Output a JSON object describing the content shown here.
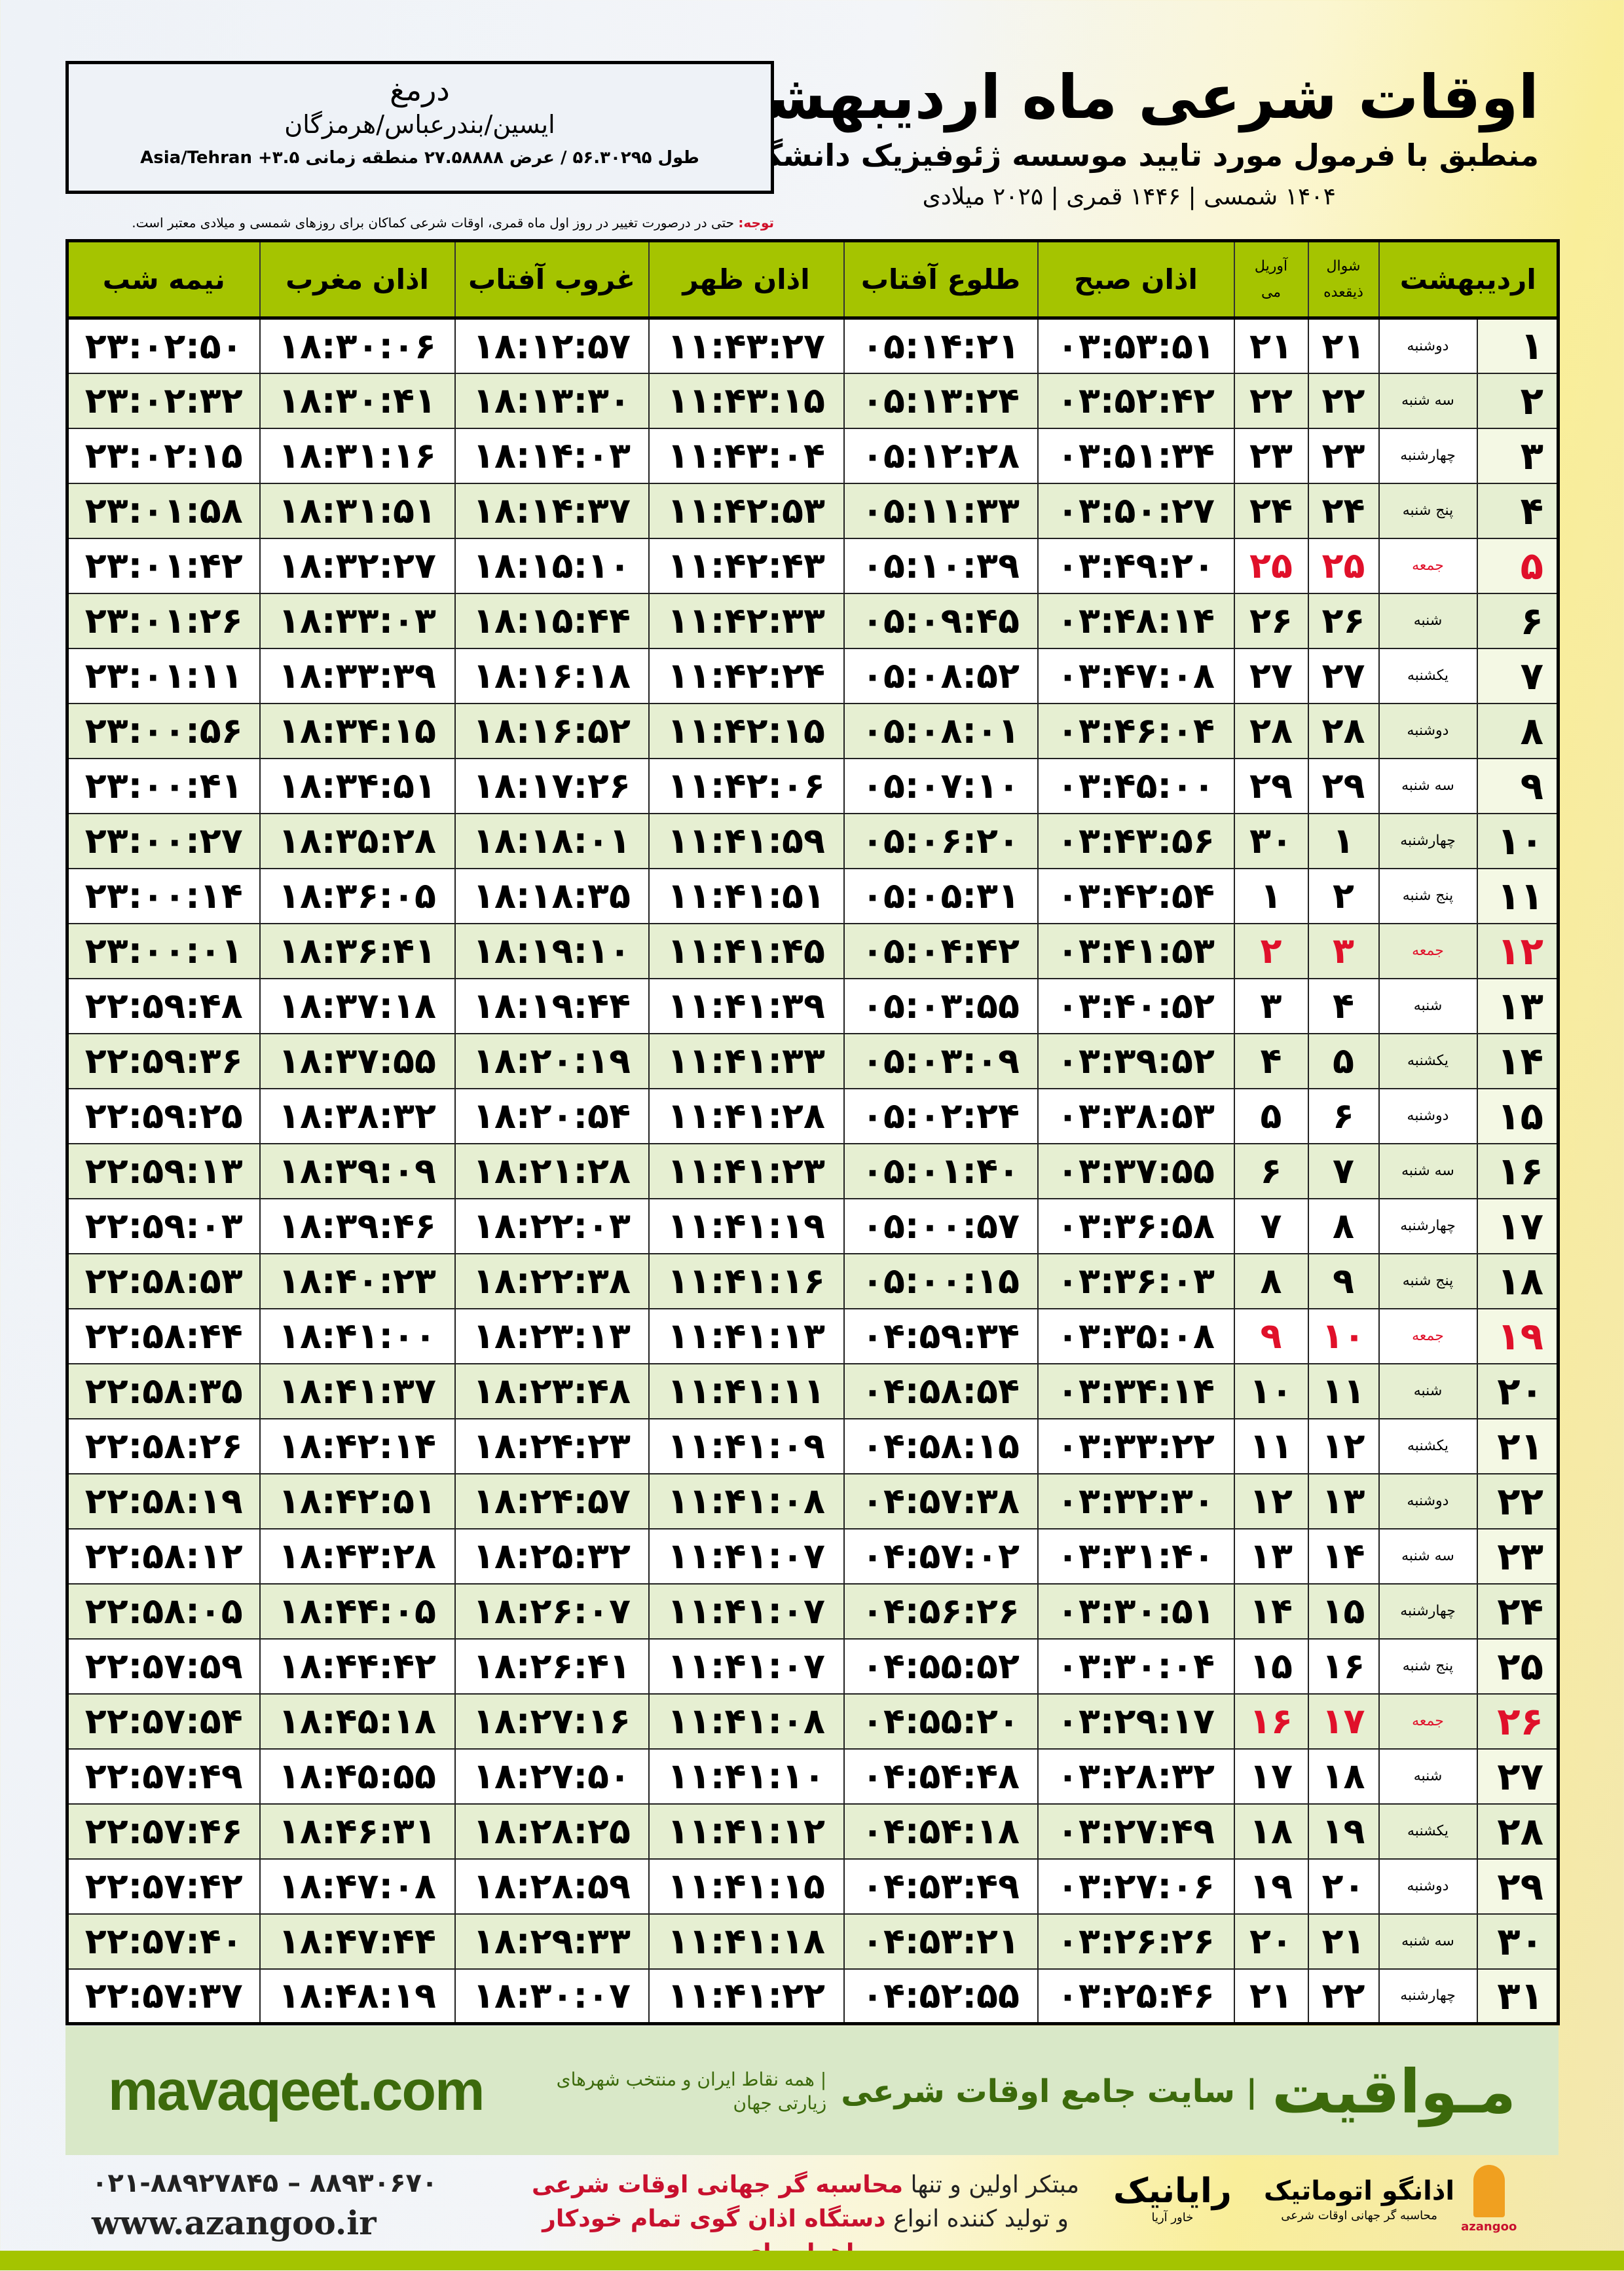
{
  "header": {
    "title": "اوقات شرعی ماه اردیبهشت",
    "subtitle": "منطبق با فرمول مورد تایید موسسه ژئوفیزیک دانشگاه تهران",
    "dates": "۱۴۰۴ شمسی | ۱۴۴۶ قمری | ۲۰۲۵ میلادی"
  },
  "location": {
    "city": "درمغ",
    "region": "ایسین/بندرعباس/هرمزگان",
    "coords": "طول ۵۶.۳۰۲۹۵ / عرض ۲۷.۵۸۸۸۸ منطقه زمانی ۳.۵+ Asia/Tehran"
  },
  "note": {
    "label": "توجه:",
    "text": " حتی در درصورت تغییر در روز اول ماه قمری، اوقات شرعی کماکان برای روزهای شمسی و میلادی معتبر است."
  },
  "table": {
    "headers": {
      "day": "اردیبهشت",
      "hijri": "شوال",
      "hijri2": "ذیقعده",
      "greg": "آوریل",
      "greg2": "می",
      "fajr": "اذان صبح",
      "sunrise": "طلوع آفتاب",
      "dhuhr": "اذان ظهر",
      "sunset": "غروب آفتاب",
      "maghrib": "اذان مغرب",
      "midnight": "نیمه شب"
    },
    "friday_color": "#e0102a",
    "header_color": "#a5c400",
    "rows": [
      [
        "۱",
        "دوشنبه",
        "۲۱",
        "۲۱",
        "۰۳:۵۳:۵۱",
        "۰۵:۱۴:۲۱",
        "۱۱:۴۳:۲۷",
        "۱۸:۱۲:۵۷",
        "۱۸:۳۰:۰۶",
        "۲۳:۰۲:۵۰"
      ],
      [
        "۲",
        "سه شنبه",
        "۲۲",
        "۲۲",
        "۰۳:۵۲:۴۲",
        "۰۵:۱۳:۲۴",
        "۱۱:۴۳:۱۵",
        "۱۸:۱۳:۳۰",
        "۱۸:۳۰:۴۱",
        "۲۳:۰۲:۳۲"
      ],
      [
        "۳",
        "چهارشنبه",
        "۲۳",
        "۲۳",
        "۰۳:۵۱:۳۴",
        "۰۵:۱۲:۲۸",
        "۱۱:۴۳:۰۴",
        "۱۸:۱۴:۰۳",
        "۱۸:۳۱:۱۶",
        "۲۳:۰۲:۱۵"
      ],
      [
        "۴",
        "پنج شنبه",
        "۲۴",
        "۲۴",
        "۰۳:۵۰:۲۷",
        "۰۵:۱۱:۳۳",
        "۱۱:۴۲:۵۳",
        "۱۸:۱۴:۳۷",
        "۱۸:۳۱:۵۱",
        "۲۳:۰۱:۵۸"
      ],
      [
        "۵",
        "جمعه",
        "۲۵",
        "۲۵",
        "۰۳:۴۹:۲۰",
        "۰۵:۱۰:۳۹",
        "۱۱:۴۲:۴۳",
        "۱۸:۱۵:۱۰",
        "۱۸:۳۲:۲۷",
        "۲۳:۰۱:۴۲"
      ],
      [
        "۶",
        "شنبه",
        "۲۶",
        "۲۶",
        "۰۳:۴۸:۱۴",
        "۰۵:۰۹:۴۵",
        "۱۱:۴۲:۳۳",
        "۱۸:۱۵:۴۴",
        "۱۸:۳۳:۰۳",
        "۲۳:۰۱:۲۶"
      ],
      [
        "۷",
        "یکشنبه",
        "۲۷",
        "۲۷",
        "۰۳:۴۷:۰۸",
        "۰۵:۰۸:۵۲",
        "۱۱:۴۲:۲۴",
        "۱۸:۱۶:۱۸",
        "۱۸:۳۳:۳۹",
        "۲۳:۰۱:۱۱"
      ],
      [
        "۸",
        "دوشنبه",
        "۲۸",
        "۲۸",
        "۰۳:۴۶:۰۴",
        "۰۵:۰۸:۰۱",
        "۱۱:۴۲:۱۵",
        "۱۸:۱۶:۵۲",
        "۱۸:۳۴:۱۵",
        "۲۳:۰۰:۵۶"
      ],
      [
        "۹",
        "سه شنبه",
        "۲۹",
        "۲۹",
        "۰۳:۴۵:۰۰",
        "۰۵:۰۷:۱۰",
        "۱۱:۴۲:۰۶",
        "۱۸:۱۷:۲۶",
        "۱۸:۳۴:۵۱",
        "۲۳:۰۰:۴۱"
      ],
      [
        "۱۰",
        "چهارشنبه",
        "۱",
        "۳۰",
        "۰۳:۴۳:۵۶",
        "۰۵:۰۶:۲۰",
        "۱۱:۴۱:۵۹",
        "۱۸:۱۸:۰۱",
        "۱۸:۳۵:۲۸",
        "۲۳:۰۰:۲۷"
      ],
      [
        "۱۱",
        "پنج شنبه",
        "۲",
        "۱",
        "۰۳:۴۲:۵۴",
        "۰۵:۰۵:۳۱",
        "۱۱:۴۱:۵۱",
        "۱۸:۱۸:۳۵",
        "۱۸:۳۶:۰۵",
        "۲۳:۰۰:۱۴"
      ],
      [
        "۱۲",
        "جمعه",
        "۳",
        "۲",
        "۰۳:۴۱:۵۳",
        "۰۵:۰۴:۴۲",
        "۱۱:۴۱:۴۵",
        "۱۸:۱۹:۱۰",
        "۱۸:۳۶:۴۱",
        "۲۳:۰۰:۰۱"
      ],
      [
        "۱۳",
        "شنبه",
        "۴",
        "۳",
        "۰۳:۴۰:۵۲",
        "۰۵:۰۳:۵۵",
        "۱۱:۴۱:۳۹",
        "۱۸:۱۹:۴۴",
        "۱۸:۳۷:۱۸",
        "۲۲:۵۹:۴۸"
      ],
      [
        "۱۴",
        "یکشنبه",
        "۵",
        "۴",
        "۰۳:۳۹:۵۲",
        "۰۵:۰۳:۰۹",
        "۱۱:۴۱:۳۳",
        "۱۸:۲۰:۱۹",
        "۱۸:۳۷:۵۵",
        "۲۲:۵۹:۳۶"
      ],
      [
        "۱۵",
        "دوشنبه",
        "۶",
        "۵",
        "۰۳:۳۸:۵۳",
        "۰۵:۰۲:۲۴",
        "۱۱:۴۱:۲۸",
        "۱۸:۲۰:۵۴",
        "۱۸:۳۸:۳۲",
        "۲۲:۵۹:۲۵"
      ],
      [
        "۱۶",
        "سه شنبه",
        "۷",
        "۶",
        "۰۳:۳۷:۵۵",
        "۰۵:۰۱:۴۰",
        "۱۱:۴۱:۲۳",
        "۱۸:۲۱:۲۸",
        "۱۸:۳۹:۰۹",
        "۲۲:۵۹:۱۳"
      ],
      [
        "۱۷",
        "چهارشنبه",
        "۸",
        "۷",
        "۰۳:۳۶:۵۸",
        "۰۵:۰۰:۵۷",
        "۱۱:۴۱:۱۹",
        "۱۸:۲۲:۰۳",
        "۱۸:۳۹:۴۶",
        "۲۲:۵۹:۰۳"
      ],
      [
        "۱۸",
        "پنج شنبه",
        "۹",
        "۸",
        "۰۳:۳۶:۰۳",
        "۰۵:۰۰:۱۵",
        "۱۱:۴۱:۱۶",
        "۱۸:۲۲:۳۸",
        "۱۸:۴۰:۲۳",
        "۲۲:۵۸:۵۳"
      ],
      [
        "۱۹",
        "جمعه",
        "۱۰",
        "۹",
        "۰۳:۳۵:۰۸",
        "۰۴:۵۹:۳۴",
        "۱۱:۴۱:۱۳",
        "۱۸:۲۳:۱۳",
        "۱۸:۴۱:۰۰",
        "۲۲:۵۸:۴۴"
      ],
      [
        "۲۰",
        "شنبه",
        "۱۱",
        "۱۰",
        "۰۳:۳۴:۱۴",
        "۰۴:۵۸:۵۴",
        "۱۱:۴۱:۱۱",
        "۱۸:۲۳:۴۸",
        "۱۸:۴۱:۳۷",
        "۲۲:۵۸:۳۵"
      ],
      [
        "۲۱",
        "یکشنبه",
        "۱۲",
        "۱۱",
        "۰۳:۳۳:۲۲",
        "۰۴:۵۸:۱۵",
        "۱۱:۴۱:۰۹",
        "۱۸:۲۴:۲۳",
        "۱۸:۴۲:۱۴",
        "۲۲:۵۸:۲۶"
      ],
      [
        "۲۲",
        "دوشنبه",
        "۱۳",
        "۱۲",
        "۰۳:۳۲:۳۰",
        "۰۴:۵۷:۳۸",
        "۱۱:۴۱:۰۸",
        "۱۸:۲۴:۵۷",
        "۱۸:۴۲:۵۱",
        "۲۲:۵۸:۱۹"
      ],
      [
        "۲۳",
        "سه شنبه",
        "۱۴",
        "۱۳",
        "۰۳:۳۱:۴۰",
        "۰۴:۵۷:۰۲",
        "۱۱:۴۱:۰۷",
        "۱۸:۲۵:۳۲",
        "۱۸:۴۳:۲۸",
        "۲۲:۵۸:۱۲"
      ],
      [
        "۲۴",
        "چهارشنبه",
        "۱۵",
        "۱۴",
        "۰۳:۳۰:۵۱",
        "۰۴:۵۶:۲۶",
        "۱۱:۴۱:۰۷",
        "۱۸:۲۶:۰۷",
        "۱۸:۴۴:۰۵",
        "۲۲:۵۸:۰۵"
      ],
      [
        "۲۵",
        "پنج شنبه",
        "۱۶",
        "۱۵",
        "۰۳:۳۰:۰۴",
        "۰۴:۵۵:۵۲",
        "۱۱:۴۱:۰۷",
        "۱۸:۲۶:۴۱",
        "۱۸:۴۴:۴۲",
        "۲۲:۵۷:۵۹"
      ],
      [
        "۲۶",
        "جمعه",
        "۱۷",
        "۱۶",
        "۰۳:۲۹:۱۷",
        "۰۴:۵۵:۲۰",
        "۱۱:۴۱:۰۸",
        "۱۸:۲۷:۱۶",
        "۱۸:۴۵:۱۸",
        "۲۲:۵۷:۵۴"
      ],
      [
        "۲۷",
        "شنبه",
        "۱۸",
        "۱۷",
        "۰۳:۲۸:۳۲",
        "۰۴:۵۴:۴۸",
        "۱۱:۴۱:۱۰",
        "۱۸:۲۷:۵۰",
        "۱۸:۴۵:۵۵",
        "۲۲:۵۷:۴۹"
      ],
      [
        "۲۸",
        "یکشنبه",
        "۱۹",
        "۱۸",
        "۰۳:۲۷:۴۹",
        "۰۴:۵۴:۱۸",
        "۱۱:۴۱:۱۲",
        "۱۸:۲۸:۲۵",
        "۱۸:۴۶:۳۱",
        "۲۲:۵۷:۴۶"
      ],
      [
        "۲۹",
        "دوشنبه",
        "۲۰",
        "۱۹",
        "۰۳:۲۷:۰۶",
        "۰۴:۵۳:۴۹",
        "۱۱:۴۱:۱۵",
        "۱۸:۲۸:۵۹",
        "۱۸:۴۷:۰۸",
        "۲۲:۵۷:۴۲"
      ],
      [
        "۳۰",
        "سه شنبه",
        "۲۱",
        "۲۰",
        "۰۳:۲۶:۲۶",
        "۰۴:۵۳:۲۱",
        "۱۱:۴۱:۱۸",
        "۱۸:۲۹:۳۳",
        "۱۸:۴۷:۴۴",
        "۲۲:۵۷:۴۰"
      ],
      [
        "۳۱",
        "چهارشنبه",
        "۲۲",
        "۲۱",
        "۰۳:۲۵:۴۶",
        "۰۴:۵۲:۵۵",
        "۱۱:۴۱:۲۲",
        "۱۸:۳۰:۰۷",
        "۱۸:۴۸:۱۹",
        "۲۲:۵۷:۳۷"
      ]
    ]
  },
  "banner": {
    "brand": "مـواقیت",
    "tagline": "| سایت جامع اوقات شرعی",
    "tagline2": "| همه نقاط ایران و منتخب شهرهای زیارتی جهان",
    "site": "mavaqeet.com"
  },
  "footer": {
    "phones": "۰۲۱-۸۸۹۲۷۸۴۵ – ۸۸۹۳۰۶۷۰",
    "url": "www.azangoo.ir",
    "promo_line1_a": "مبتکر اولین و تنها ",
    "promo_line1_b": "محاسبه گر جهانی اوقات شرعی",
    "promo_line2_a": "و تولید کننده انواع ",
    "promo_line2_b": "دستگاه اذان گوی تمام خودکار ماهواره ای",
    "logo_rayanik": "رایانیک",
    "logo_rayanik_sub": "خاور آریا",
    "logo_azangoo": "اذانگو اتوماتیک",
    "logo_azangoo_sub": "محاسبه گر جهانی اوقات شرعی",
    "logo_azangoo_en": "azangoo"
  }
}
